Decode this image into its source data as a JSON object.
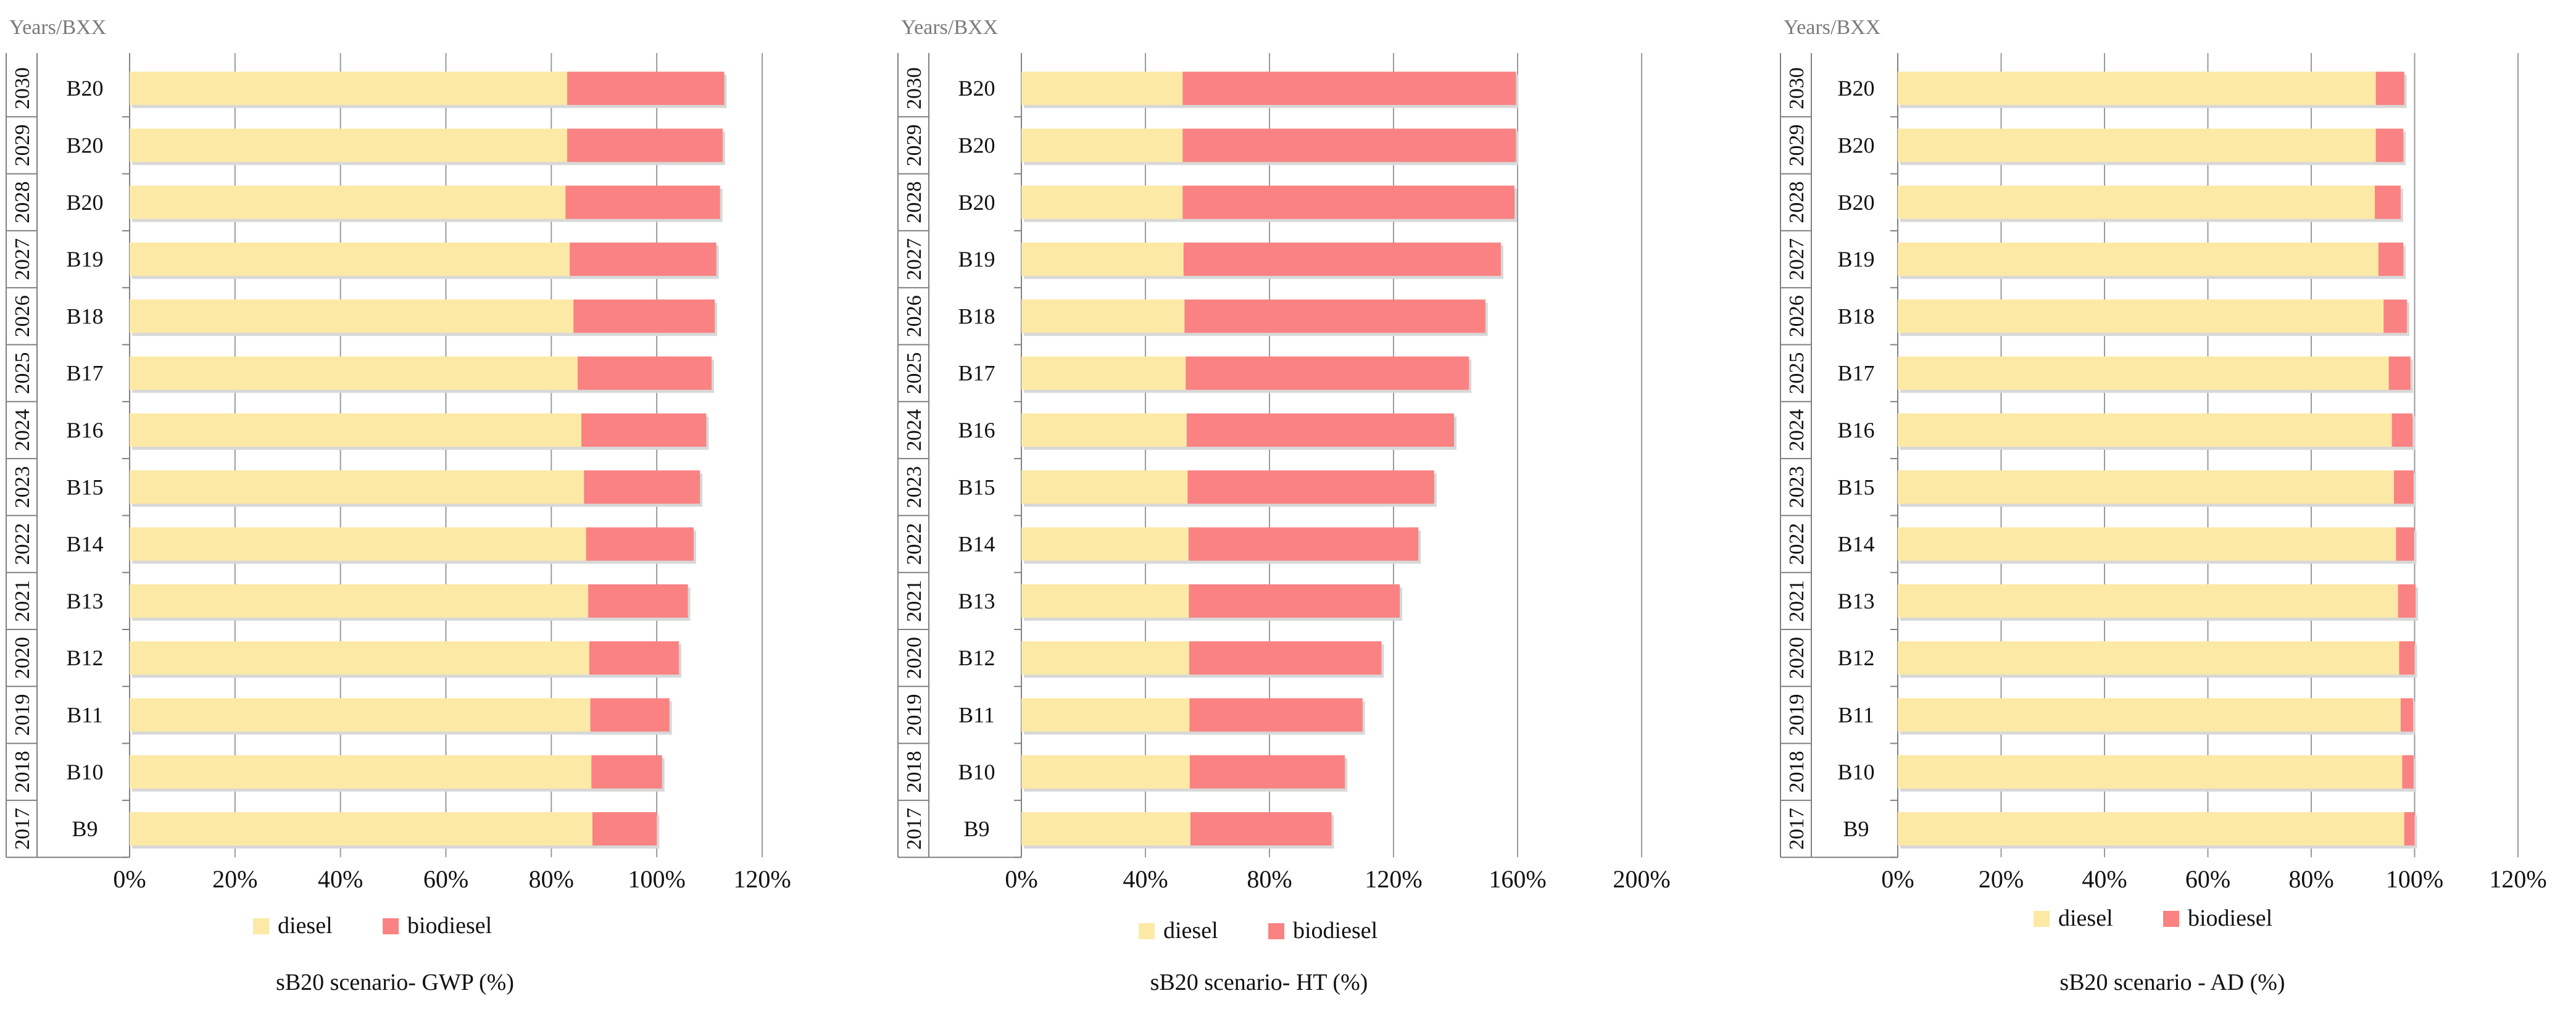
{
  "colors": {
    "diesel": "#fde9a6",
    "biodiesel": "#fa8282",
    "gridline": "#9a9a9a",
    "axis": "#808080",
    "text": "#111111",
    "corner_label": "#7a7a7a"
  },
  "chart_data": [
    {
      "type": "bar",
      "orientation": "horizontal",
      "stacked": true,
      "title": "sB20 scenario-  GWP (%)",
      "corner_label": "Years/BXX",
      "years": [
        "2030",
        "2029",
        "2028",
        "2027",
        "2026",
        "2025",
        "2024",
        "2023",
        "2022",
        "2021",
        "2020",
        "2019",
        "2018",
        "2017"
      ],
      "categories": [
        "B20",
        "B20",
        "B20",
        "B19",
        "B18",
        "B17",
        "B16",
        "B15",
        "B14",
        "B13",
        "B12",
        "B11",
        "B10",
        "B9"
      ],
      "x_ticks": [
        0,
        20,
        40,
        60,
        80,
        100,
        120
      ],
      "x_tick_labels": [
        "0%",
        "20%",
        "40%",
        "60%",
        "80%",
        "100%",
        "120%"
      ],
      "xlim": [
        0,
        120
      ],
      "legend": [
        "diesel",
        "biodiesel"
      ],
      "series": [
        {
          "name": "diesel",
          "values": [
            83.0,
            83.0,
            82.7,
            83.5,
            84.2,
            85.0,
            85.7,
            86.2,
            86.6,
            87.0,
            87.2,
            87.4,
            87.6,
            87.8
          ]
        },
        {
          "name": "biodiesel",
          "values": [
            29.8,
            29.5,
            29.3,
            27.8,
            26.8,
            25.4,
            23.7,
            22.0,
            20.4,
            18.9,
            17.0,
            15.0,
            13.4,
            12.2
          ]
        }
      ]
    },
    {
      "type": "bar",
      "orientation": "horizontal",
      "stacked": true,
      "title": "sB20 scenario-  HT (%)",
      "corner_label": "Years/BXX",
      "years": [
        "2030",
        "2029",
        "2028",
        "2027",
        "2026",
        "2025",
        "2024",
        "2023",
        "2022",
        "2021",
        "2020",
        "2019",
        "2018",
        "2017"
      ],
      "categories": [
        "B20",
        "B20",
        "B20",
        "B19",
        "B18",
        "B17",
        "B16",
        "B15",
        "B14",
        "B13",
        "B12",
        "B11",
        "B10",
        "B9"
      ],
      "x_ticks": [
        0,
        40,
        80,
        120,
        160,
        200
      ],
      "x_tick_labels": [
        "0%",
        "40%",
        "80%",
        "120%",
        "160%",
        "200%"
      ],
      "xlim": [
        0,
        200
      ],
      "legend": [
        "diesel",
        "biodiesel"
      ],
      "series": [
        {
          "name": "diesel",
          "values": [
            52.0,
            52.0,
            52.0,
            52.3,
            52.6,
            53.0,
            53.3,
            53.6,
            53.9,
            54.0,
            54.1,
            54.2,
            54.3,
            54.5
          ]
        },
        {
          "name": "biodiesel",
          "values": [
            107.5,
            107.5,
            107.0,
            102.3,
            97.0,
            91.3,
            86.2,
            79.5,
            74.1,
            68.0,
            62.0,
            55.8,
            50.0,
            45.5
          ]
        }
      ]
    },
    {
      "type": "bar",
      "orientation": "horizontal",
      "stacked": true,
      "title": "sB20 scenario -  AD (%)",
      "corner_label": "Years/BXX",
      "years": [
        "2030",
        "2029",
        "2028",
        "2027",
        "2026",
        "2025",
        "2024",
        "2023",
        "2022",
        "2021",
        "2020",
        "2019",
        "2018",
        "2017"
      ],
      "categories": [
        "B20",
        "B20",
        "B20",
        "B19",
        "B18",
        "B17",
        "B16",
        "B15",
        "B14",
        "B13",
        "B12",
        "B11",
        "B10",
        "B9"
      ],
      "x_ticks": [
        0,
        20,
        40,
        60,
        80,
        100,
        120
      ],
      "x_tick_labels": [
        "0%",
        "20%",
        "40%",
        "60%",
        "80%",
        "100%",
        "120%"
      ],
      "xlim": [
        0,
        120
      ],
      "legend": [
        "diesel",
        "biodiesel"
      ],
      "series": [
        {
          "name": "diesel",
          "values": [
            92.5,
            92.5,
            92.3,
            93.0,
            94.0,
            95.0,
            95.6,
            96.0,
            96.4,
            96.8,
            97.0,
            97.3,
            97.6,
            98.0
          ]
        },
        {
          "name": "biodiesel",
          "values": [
            5.5,
            5.3,
            5.0,
            4.8,
            4.5,
            4.2,
            4.0,
            3.8,
            3.5,
            3.4,
            3.0,
            2.4,
            2.2,
            2.0
          ]
        }
      ]
    }
  ]
}
